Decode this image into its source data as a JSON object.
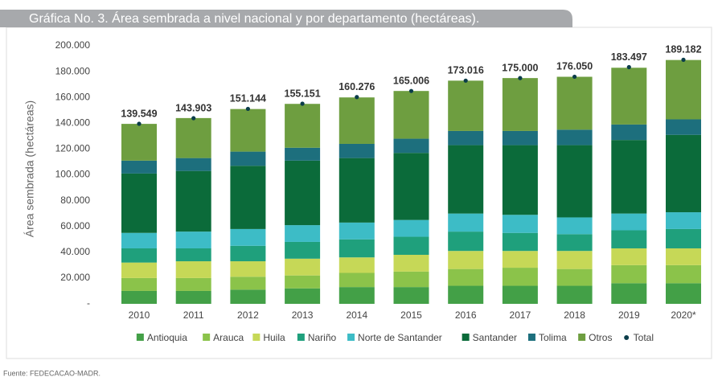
{
  "chart_data": {
    "type": "bar",
    "stacked": true,
    "title": "Gráfica No. 3. Área sembrada a nivel nacional y por departamento (hectáreas).",
    "y_label": "Área sembrada (hectáreas)",
    "source": "Fuente: FEDECACAO-MADR.",
    "categories": [
      "2010",
      "2011",
      "2012",
      "2013",
      "2014",
      "2015",
      "2016",
      "2017",
      "2018",
      "2019",
      "2020*"
    ],
    "ylim": [
      0,
      200000
    ],
    "yticks": [
      {
        "value": 0,
        "label": "-"
      },
      {
        "value": 20000,
        "label": "20.000"
      },
      {
        "value": 40000,
        "label": "40.000"
      },
      {
        "value": 60000,
        "label": "60.000"
      },
      {
        "value": 80000,
        "label": "80.000"
      },
      {
        "value": 100000,
        "label": "100.000"
      },
      {
        "value": 120000,
        "label": "120.000"
      },
      {
        "value": 140000,
        "label": "140.000"
      },
      {
        "value": 160000,
        "label": "160.000"
      },
      {
        "value": 180000,
        "label": "180.000"
      },
      {
        "value": 200000,
        "label": "200.000"
      }
    ],
    "series": [
      {
        "name": "Antioquia",
        "color": "#43a047",
        "values": [
          10000,
          10000,
          11000,
          12000,
          13000,
          13000,
          14000,
          14000,
          14000,
          16000,
          16000
        ]
      },
      {
        "name": "Arauca",
        "color": "#8bc34a",
        "values": [
          10000,
          10000,
          10000,
          10000,
          11000,
          12000,
          13000,
          14000,
          13000,
          14000,
          14000
        ]
      },
      {
        "name": "Huila",
        "color": "#c6d857",
        "values": [
          12000,
          13000,
          12000,
          13000,
          12000,
          13000,
          14000,
          13000,
          14000,
          13000,
          13000
        ]
      },
      {
        "name": "Nariño",
        "color": "#1fa07c",
        "values": [
          11000,
          10000,
          12000,
          13000,
          14000,
          14000,
          15000,
          14000,
          13000,
          14000,
          15000
        ]
      },
      {
        "name": "Norte de Santander",
        "color": "#3dbcc6",
        "values": [
          12000,
          13000,
          13000,
          13000,
          13000,
          13000,
          14000,
          14000,
          13000,
          13000,
          13000
        ]
      },
      {
        "name": "Santander",
        "color": "#0b6b3a",
        "values": [
          46000,
          47000,
          49000,
          50000,
          50000,
          52000,
          53000,
          54000,
          56000,
          57000,
          60000
        ]
      },
      {
        "name": "Tolima",
        "color": "#1d6f7d",
        "values": [
          10000,
          10000,
          11000,
          10000,
          11000,
          11000,
          11000,
          11000,
          12000,
          12000,
          12000
        ]
      },
      {
        "name": "Otros",
        "color": "#6e9e40",
        "values": [
          28500,
          31000,
          33000,
          34000,
          36000,
          37000,
          39000,
          41000,
          41000,
          44000,
          46000
        ]
      }
    ],
    "total": {
      "name": "Total",
      "color": "#0b3d4a",
      "values": [
        139549,
        143903,
        151144,
        155151,
        160276,
        165006,
        173016,
        175000,
        176050,
        183497,
        189182
      ],
      "value_labels": [
        "139.549",
        "143.903",
        "151.144",
        "155.151",
        "160.276",
        "165.006",
        "173.016",
        "175.000",
        "176.050",
        "183.497",
        "189.182"
      ]
    },
    "grid": false
  }
}
